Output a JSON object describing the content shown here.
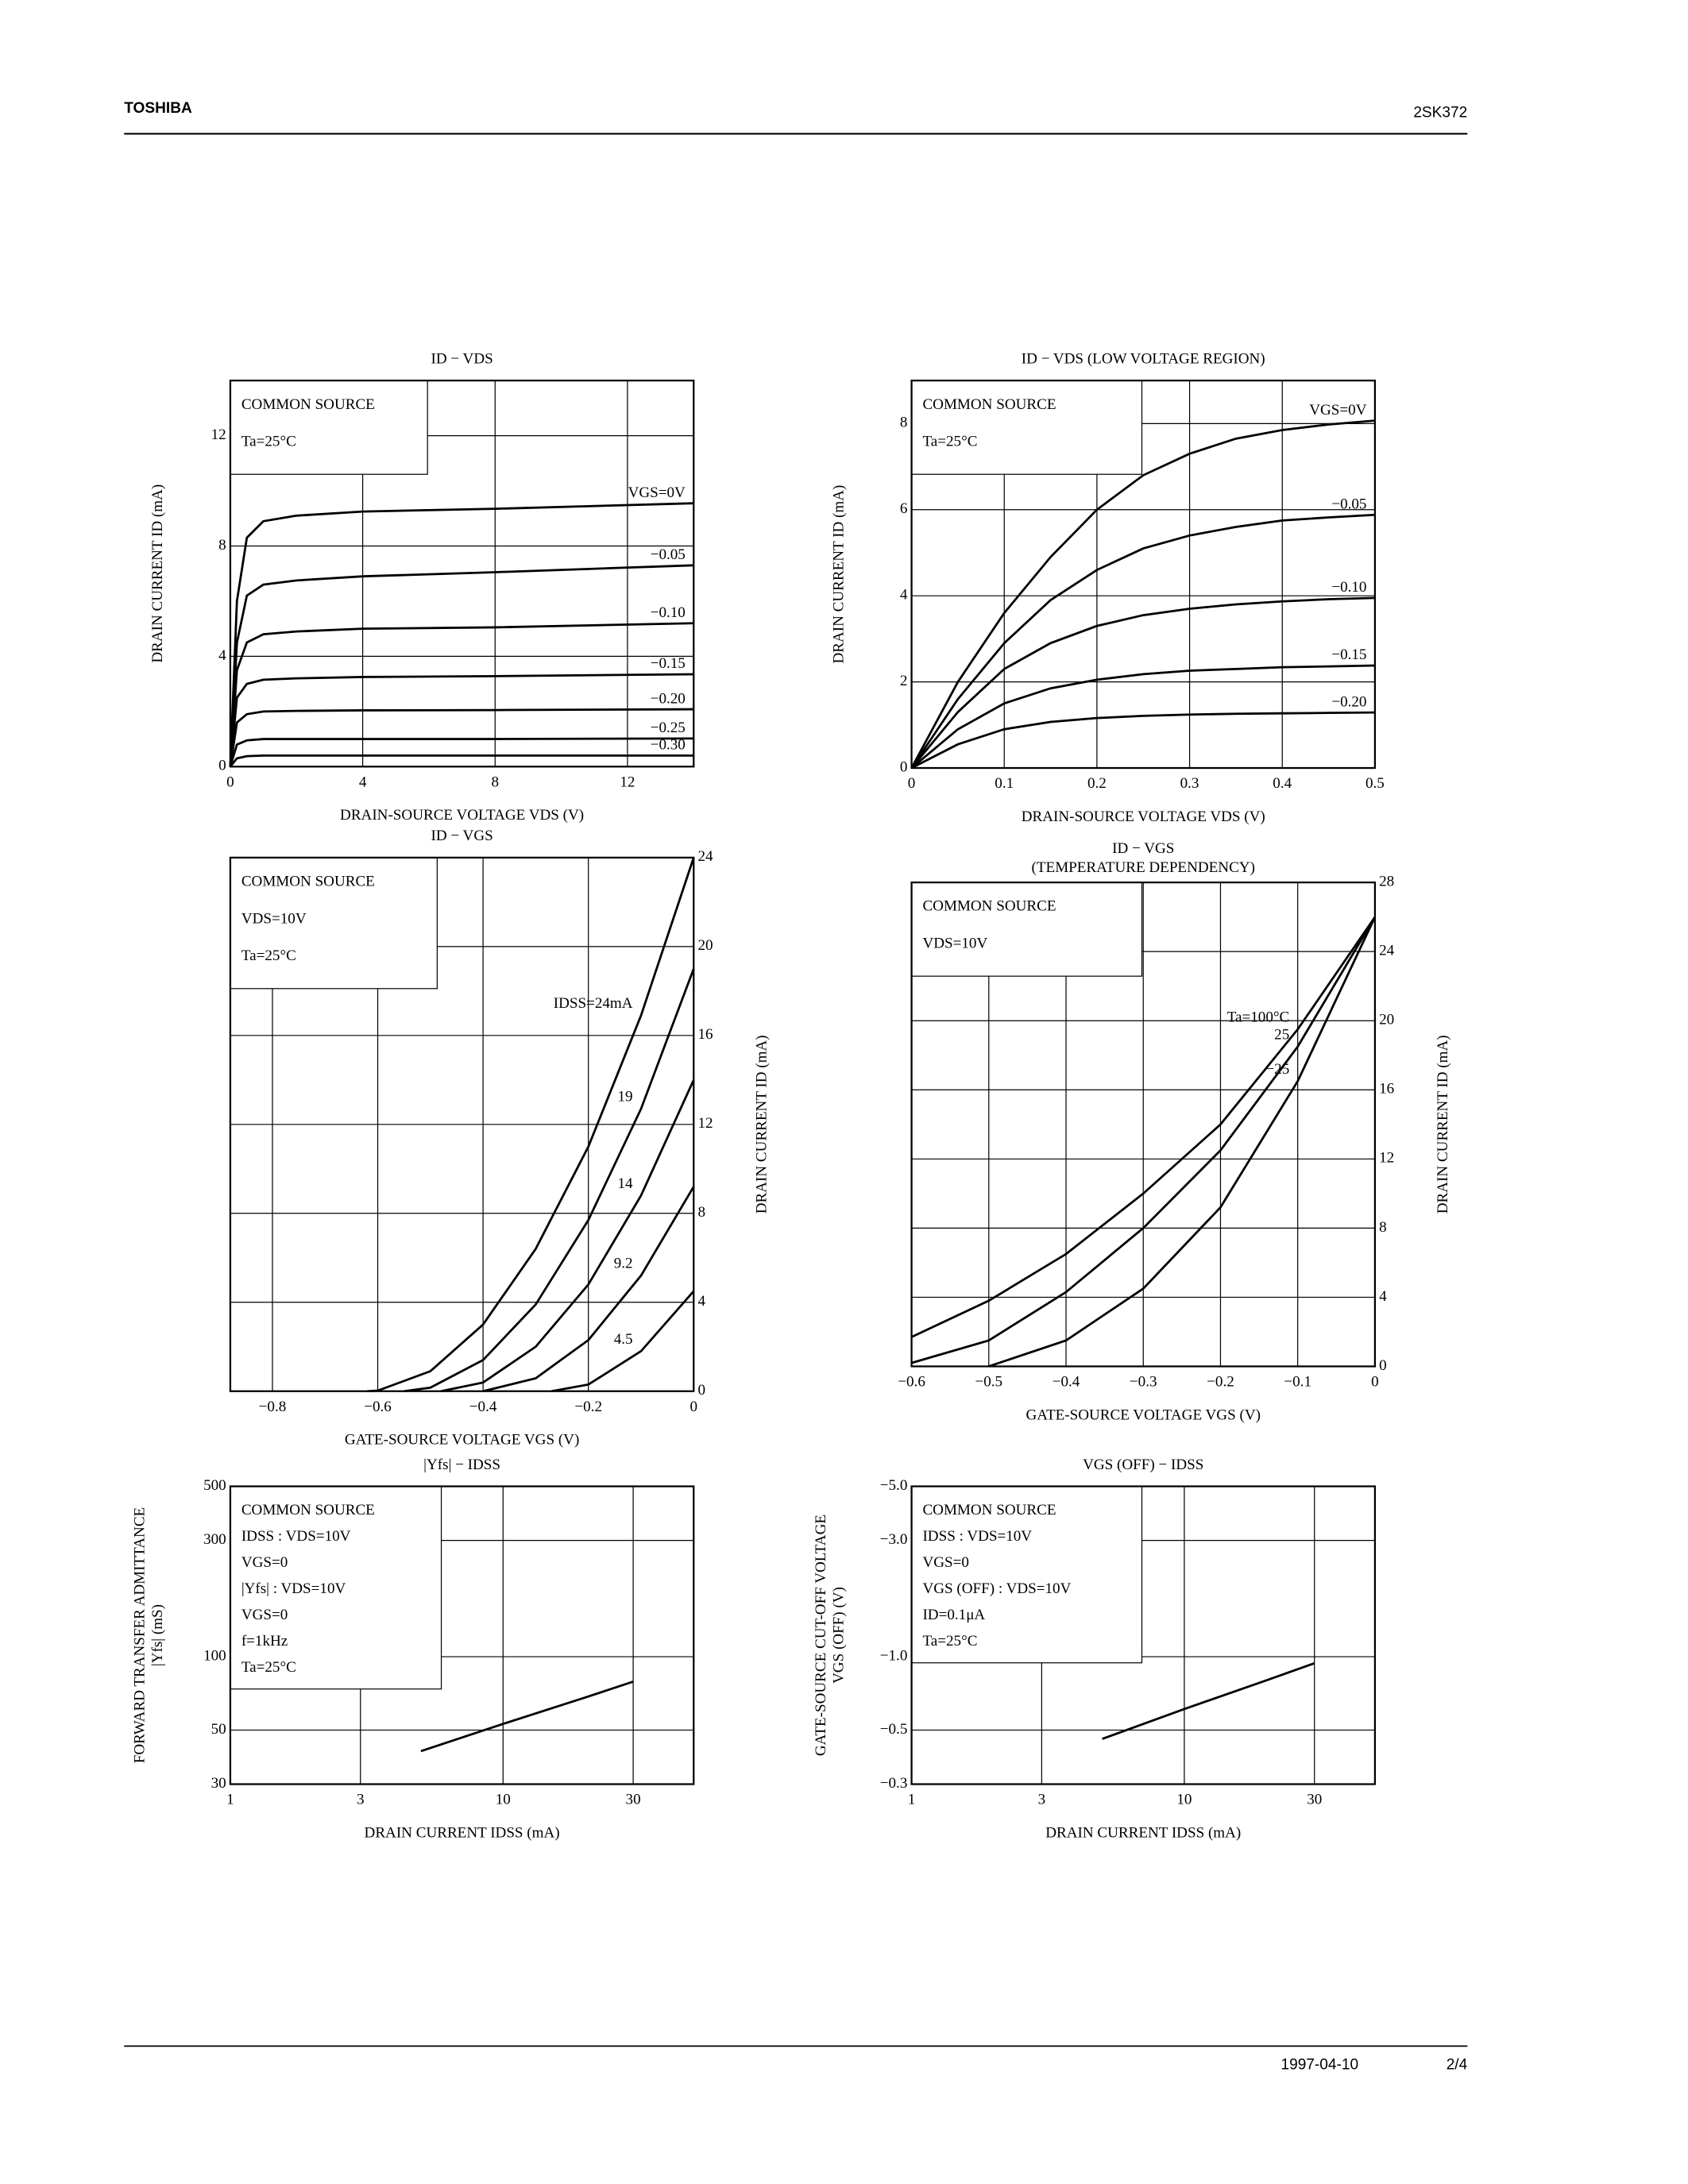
{
  "header": {
    "brand": "TOSHIBA",
    "part": "2SK372"
  },
  "footer": {
    "date": "1997-04-10",
    "page": "2/4"
  },
  "chart_data": [
    {
      "type": "line",
      "title": "ID − VDS",
      "xlabel": "DRAIN-SOURCE VOLTAGE VDS (V)",
      "ylabel": "DRAIN CURRENT ID (mA)",
      "notes": [
        "COMMON SOURCE",
        "Ta=25°C"
      ],
      "color": "#000000",
      "grid": true,
      "xlim": [
        0,
        14
      ],
      "xticks": [
        0,
        4,
        8,
        12
      ],
      "ylim": [
        0,
        14
      ],
      "yticks": [
        0,
        4,
        8,
        12
      ],
      "series": [
        {
          "name": "VGS=0V",
          "x": [
            0,
            0.2,
            0.5,
            1,
            2,
            4,
            8,
            14
          ],
          "values": [
            0,
            6,
            8.3,
            8.9,
            9.1,
            9.25,
            9.35,
            9.55
          ]
        },
        {
          "name": "−0.05",
          "x": [
            0,
            0.2,
            0.5,
            1,
            2,
            4,
            8,
            14
          ],
          "values": [
            0,
            4.5,
            6.2,
            6.6,
            6.75,
            6.9,
            7.05,
            7.3
          ]
        },
        {
          "name": "−0.10",
          "x": [
            0,
            0.2,
            0.5,
            1,
            2,
            4,
            8,
            14
          ],
          "values": [
            0,
            3.5,
            4.5,
            4.8,
            4.9,
            5.0,
            5.05,
            5.2
          ]
        },
        {
          "name": "−0.15",
          "x": [
            0,
            0.2,
            0.5,
            1,
            2,
            4,
            8,
            14
          ],
          "values": [
            0,
            2.5,
            3.0,
            3.15,
            3.2,
            3.25,
            3.28,
            3.35
          ]
        },
        {
          "name": "−0.20",
          "x": [
            0,
            0.2,
            0.5,
            1,
            2,
            4,
            8,
            14
          ],
          "values": [
            0,
            1.6,
            1.9,
            2.0,
            2.02,
            2.04,
            2.05,
            2.08
          ]
        },
        {
          "name": "−0.25",
          "x": [
            0,
            0.2,
            0.5,
            1,
            2,
            4,
            8,
            14
          ],
          "values": [
            0,
            0.8,
            0.95,
            1.0,
            1.0,
            1.0,
            1.0,
            1.02
          ]
        },
        {
          "name": "−0.30",
          "x": [
            0,
            0.2,
            0.5,
            1,
            2,
            4,
            8,
            14
          ],
          "values": [
            0,
            0.3,
            0.38,
            0.4,
            0.4,
            0.4,
            0.4,
            0.4
          ]
        }
      ]
    },
    {
      "type": "line",
      "title": "ID − VDS (LOW VOLTAGE REGION)",
      "xlabel": "DRAIN-SOURCE VOLTAGE VDS (V)",
      "ylabel": "DRAIN CURRENT ID (mA)",
      "notes": [
        "COMMON SOURCE",
        "Ta=25°C"
      ],
      "color": "#000000",
      "grid": true,
      "xlim": [
        0,
        0.5
      ],
      "xticks": [
        0,
        0.1,
        0.2,
        0.3,
        0.4,
        0.5
      ],
      "ylim": [
        0,
        9
      ],
      "yticks": [
        0,
        2,
        4,
        6,
        8
      ],
      "series": [
        {
          "name": "VGS=0V",
          "x": [
            0,
            0.05,
            0.1,
            0.15,
            0.2,
            0.25,
            0.3,
            0.35,
            0.4,
            0.45,
            0.5
          ],
          "values": [
            0,
            2.0,
            3.6,
            4.9,
            6.0,
            6.8,
            7.3,
            7.65,
            7.85,
            7.98,
            8.07
          ]
        },
        {
          "name": "−0.05",
          "x": [
            0,
            0.05,
            0.1,
            0.15,
            0.2,
            0.25,
            0.3,
            0.35,
            0.4,
            0.45,
            0.5
          ],
          "values": [
            0,
            1.6,
            2.9,
            3.9,
            4.6,
            5.1,
            5.4,
            5.6,
            5.75,
            5.82,
            5.88
          ]
        },
        {
          "name": "−0.10",
          "x": [
            0,
            0.05,
            0.1,
            0.15,
            0.2,
            0.25,
            0.3,
            0.35,
            0.4,
            0.45,
            0.5
          ],
          "values": [
            0,
            1.3,
            2.3,
            2.9,
            3.3,
            3.55,
            3.7,
            3.8,
            3.87,
            3.92,
            3.95
          ]
        },
        {
          "name": "−0.15",
          "x": [
            0,
            0.05,
            0.1,
            0.15,
            0.2,
            0.25,
            0.3,
            0.35,
            0.4,
            0.45,
            0.5
          ],
          "values": [
            0,
            0.9,
            1.5,
            1.85,
            2.05,
            2.18,
            2.26,
            2.3,
            2.34,
            2.36,
            2.38
          ]
        },
        {
          "name": "−0.20",
          "x": [
            0,
            0.05,
            0.1,
            0.15,
            0.2,
            0.25,
            0.3,
            0.35,
            0.4,
            0.45,
            0.5
          ],
          "values": [
            0,
            0.55,
            0.9,
            1.07,
            1.16,
            1.21,
            1.24,
            1.26,
            1.27,
            1.28,
            1.29
          ]
        }
      ]
    },
    {
      "type": "line",
      "title": "ID − VGS",
      "xlabel": "GATE-SOURCE VOLTAGE VGS (V)",
      "ylabel": "DRAIN CURRENT ID (mA)",
      "notes": [
        "COMMON SOURCE",
        "VDS=10V",
        "Ta=25°C"
      ],
      "color": "#000000",
      "grid": true,
      "xlim": [
        -0.88,
        0
      ],
      "xticks": [
        {
          "value": -0.8,
          "label": "−0.8"
        },
        {
          "value": -0.6,
          "label": "−0.6"
        },
        {
          "value": -0.4,
          "label": "−0.4"
        },
        {
          "value": -0.2,
          "label": "−0.2"
        },
        0
      ],
      "ylim": [
        0,
        24
      ],
      "yticks": [
        0,
        4,
        8,
        12,
        16,
        20,
        24
      ],
      "series": [
        {
          "name": "IDSS=24mA",
          "x": [
            -0.62,
            -0.6,
            -0.5,
            -0.4,
            -0.3,
            -0.2,
            -0.1,
            0
          ],
          "values": [
            0,
            0.025,
            0.9,
            3.0,
            6.4,
            11.0,
            16.9,
            24
          ]
        },
        {
          "name": "19",
          "x": [
            -0.55,
            -0.5,
            -0.4,
            -0.3,
            -0.2,
            -0.1,
            0
          ],
          "values": [
            0,
            0.16,
            1.4,
            3.9,
            7.7,
            12.7,
            19
          ]
        },
        {
          "name": "14",
          "x": [
            -0.48,
            -0.4,
            -0.3,
            -0.2,
            -0.1,
            0
          ],
          "values": [
            0,
            0.39,
            2.0,
            4.8,
            8.8,
            14
          ]
        },
        {
          "name": "9.2",
          "x": [
            -0.4,
            -0.3,
            -0.2,
            -0.1,
            0
          ],
          "values": [
            0,
            0.58,
            2.3,
            5.2,
            9.2
          ]
        },
        {
          "name": "4.5",
          "x": [
            -0.27,
            -0.2,
            -0.1,
            0
          ],
          "values": [
            0,
            0.3,
            1.8,
            4.5
          ]
        }
      ]
    },
    {
      "type": "line",
      "title": "ID − VGS",
      "subtitle": "(TEMPERATURE DEPENDENCY)",
      "xlabel": "GATE-SOURCE VOLTAGE VGS (V)",
      "ylabel": "DRAIN CURRENT ID (mA)",
      "notes": [
        "COMMON SOURCE",
        "VDS=10V"
      ],
      "color": "#000000",
      "grid": true,
      "xlim": [
        -0.6,
        0
      ],
      "xticks": [
        {
          "value": -0.6,
          "label": "−0.6"
        },
        {
          "value": -0.5,
          "label": "−0.5"
        },
        {
          "value": -0.4,
          "label": "−0.4"
        },
        {
          "value": -0.3,
          "label": "−0.3"
        },
        {
          "value": -0.2,
          "label": "−0.2"
        },
        {
          "value": -0.1,
          "label": "−0.1"
        },
        0
      ],
      "ylim": [
        0,
        28
      ],
      "yticks": [
        0,
        4,
        8,
        12,
        16,
        20,
        24,
        28
      ],
      "series": [
        {
          "name": "Ta=100°C",
          "x": [
            -0.6,
            -0.5,
            -0.4,
            -0.3,
            -0.2,
            -0.1,
            0
          ],
          "values": [
            1.7,
            3.8,
            6.5,
            10,
            14,
            19.5,
            26
          ]
        },
        {
          "name": "25",
          "x": [
            -0.6,
            -0.5,
            -0.4,
            -0.3,
            -0.2,
            -0.1,
            0
          ],
          "values": [
            0.2,
            1.5,
            4.3,
            8,
            12.5,
            18.5,
            26
          ]
        },
        {
          "name": "−25",
          "x": [
            -0.5,
            -0.4,
            -0.3,
            -0.2,
            -0.1,
            0
          ],
          "values": [
            0,
            1.5,
            4.5,
            9.2,
            16.5,
            26
          ]
        }
      ]
    },
    {
      "type": "line",
      "title": "|Yfs| − IDSS",
      "xlabel": "DRAIN CURRENT IDSS (mA)",
      "ylabel": [
        "FORWARD TRANSFER ADMITTANCE",
        "|Yfs| (mS)"
      ],
      "notes": [
        "COMMON SOURCE",
        "IDSS : VDS=10V",
        "VGS=0",
        "|Yfs| : VDS=10V",
        "VGS=0",
        "f=1kHz",
        "Ta=25°C"
      ],
      "color": "#000000",
      "grid": true,
      "xscale": "log",
      "yscale": "log",
      "xlim": [
        1,
        50
      ],
      "xticks": [
        1,
        3,
        10,
        30
      ],
      "ylim": [
        30,
        500
      ],
      "yticks": [
        30,
        50,
        100,
        300,
        500
      ],
      "series": [
        {
          "x": [
            5,
            10,
            20,
            30
          ],
          "values": [
            41,
            53,
            68,
            79
          ]
        }
      ]
    },
    {
      "type": "line",
      "title": "VGS (OFF) − IDSS",
      "xlabel": "DRAIN CURRENT IDSS (mA)",
      "ylabel": [
        "GATE-SOURCE CUT-OFF VOLTAGE",
        "VGS (OFF) (V)"
      ],
      "notes": [
        "COMMON SOURCE",
        "IDSS : VDS=10V",
        "VGS=0",
        "VGS (OFF) : VDS=10V",
        "ID=0.1μA",
        "Ta=25°C"
      ],
      "color": "#000000",
      "grid": true,
      "xscale": "log",
      "yscale": "log",
      "xlim": [
        1,
        50
      ],
      "xticks": [
        1,
        3,
        10,
        30
      ],
      "ylim": [
        -0.3,
        -5.0
      ],
      "yticks": [
        {
          "value": -0.3,
          "label": "−0.3"
        },
        {
          "value": -0.5,
          "label": "−0.5"
        },
        {
          "value": -1.0,
          "label": "−1.0"
        },
        {
          "value": -3.0,
          "label": "−3.0"
        },
        {
          "value": -5.0,
          "label": "−5.0"
        }
      ],
      "series": [
        {
          "x": [
            5,
            10,
            20,
            30
          ],
          "values": [
            -0.46,
            -0.61,
            -0.8,
            -0.94
          ]
        }
      ]
    }
  ]
}
